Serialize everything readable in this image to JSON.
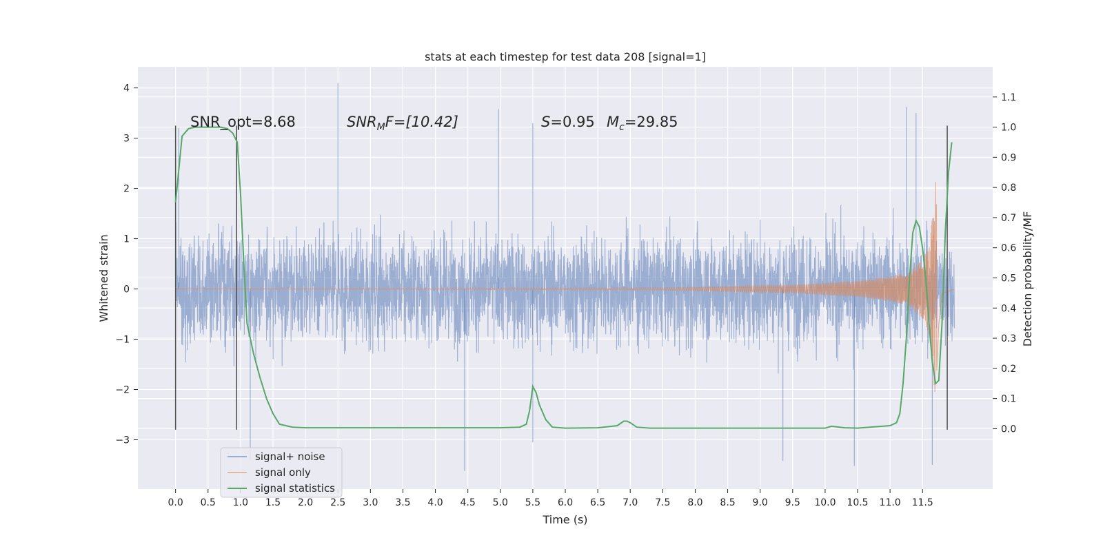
{
  "chart_data": {
    "type": "line",
    "title": "stats at each timestep for test data 208 [signal=1]",
    "xlabel": "Time (s)",
    "ylabel": "Whitened strain",
    "y2label": "Detection probability/MF",
    "xlim": [
      -0.58,
      12.58
    ],
    "ylim": [
      -3.98,
      4.42
    ],
    "y2lim": [
      -0.2,
      1.2
    ],
    "x_ticks": [
      0.0,
      0.5,
      1.0,
      1.5,
      2.0,
      2.5,
      3.0,
      3.5,
      4.0,
      4.5,
      5.0,
      5.5,
      6.0,
      6.5,
      7.0,
      7.5,
      8.0,
      8.5,
      9.0,
      9.5,
      10.0,
      10.5,
      11.0,
      11.5
    ],
    "x_tick_labels": [
      "0.0",
      "0.5",
      "1.0",
      "1.5",
      "2.0",
      "2.5",
      "3.0",
      "3.5",
      "4.0",
      "4.5",
      "5.0",
      "5.5",
      "6.0",
      "6.5",
      "7.0",
      "7.5",
      "8.0",
      "8.5",
      "9.0",
      "9.5",
      "10.0",
      "10.5",
      "11.0",
      "11.5"
    ],
    "y_ticks": [
      -3,
      -2,
      -1,
      0,
      1,
      2,
      3,
      4
    ],
    "y_tick_labels": [
      "−3",
      "−2",
      "−1",
      "0",
      "1",
      "2",
      "3",
      "4"
    ],
    "y2_ticks": [
      0.0,
      0.1,
      0.2,
      0.3,
      0.4,
      0.5,
      0.6,
      0.7,
      0.8,
      0.9,
      1.0,
      1.1
    ],
    "y2_tick_labels": [
      "0.0",
      "0.1",
      "0.2",
      "0.3",
      "0.4",
      "0.5",
      "0.6",
      "0.7",
      "0.8",
      "0.9",
      "1.0",
      "1.1"
    ],
    "grid": true,
    "legend_position": "lower-left",
    "annotations": {
      "snr_opt": "SNR_opt=8.68",
      "snr_mf_italic": "SNR",
      "snr_mf_sub": "M",
      "snr_mf_rest": "F=[10.42]",
      "s_italic": "S",
      "s_rest": "=0.95",
      "mc_italic": "M",
      "mc_sub": "c",
      "mc_rest": "=29.85"
    },
    "series": [
      {
        "name": "signal+ noise",
        "axis": "left",
        "color": "#4c72b0",
        "x_range": [
          0.0,
          11.99
        ],
        "typical_range": [
          -1.6,
          1.7
        ],
        "extremes": [
          -3.62,
          4.1
        ],
        "peaks": [
          {
            "x": 0.05,
            "y": 3.2
          },
          {
            "x": 2.5,
            "y": 4.1
          },
          {
            "x": 4.97,
            "y": 3.58
          },
          {
            "x": 5.5,
            "y": 3.3
          },
          {
            "x": 11.25,
            "y": 3.62
          },
          {
            "x": 11.4,
            "y": 3.5
          },
          {
            "x": 1.15,
            "y": -3.4
          },
          {
            "x": 4.45,
            "y": -3.62
          },
          {
            "x": 10.45,
            "y": -3.52
          },
          {
            "x": 11.65,
            "y": -3.5
          },
          {
            "x": 9.35,
            "y": -3.42
          },
          {
            "x": 5.5,
            "y": -3.05
          }
        ]
      },
      {
        "name": "signal only",
        "axis": "left",
        "color": "#dd8452",
        "description_free": true,
        "x": [
          0.0,
          7.5,
          8.5,
          9.5,
          10.0,
          10.5,
          11.0,
          11.3,
          11.5,
          11.6,
          11.65,
          11.68,
          11.7,
          11.72,
          11.75,
          11.8,
          12.0
        ],
        "y_envelope": [
          0.0,
          0.02,
          0.05,
          0.08,
          0.12,
          0.16,
          0.25,
          0.35,
          0.6,
          0.9,
          1.4,
          1.95,
          2.15,
          1.8,
          0.8,
          0.1,
          0.0
        ]
      },
      {
        "name": "signal statistics",
        "axis": "right",
        "color": "#55a868",
        "x": [
          0.0,
          0.1,
          0.2,
          0.3,
          0.5,
          0.7,
          0.8,
          0.88,
          0.95,
          1.0,
          1.05,
          1.1,
          1.2,
          1.3,
          1.4,
          1.5,
          1.6,
          1.8,
          2.0,
          3.0,
          4.0,
          5.0,
          5.3,
          5.4,
          5.45,
          5.5,
          5.55,
          5.6,
          5.7,
          5.8,
          6.0,
          6.5,
          6.8,
          6.9,
          6.95,
          7.0,
          7.1,
          7.3,
          8.0,
          9.0,
          10.0,
          10.1,
          10.3,
          10.5,
          11.0,
          11.1,
          11.15,
          11.2,
          11.25,
          11.3,
          11.35,
          11.4,
          11.45,
          11.5,
          11.55,
          11.6,
          11.65,
          11.7,
          11.75,
          11.8,
          11.85,
          11.9,
          11.95
        ],
        "y": [
          0.75,
          0.97,
          0.995,
          1.0,
          1.0,
          1.0,
          0.995,
          0.98,
          0.95,
          0.78,
          0.55,
          0.35,
          0.25,
          0.17,
          0.1,
          0.05,
          0.015,
          0.005,
          0.003,
          0.003,
          0.003,
          0.003,
          0.005,
          0.015,
          0.06,
          0.14,
          0.12,
          0.08,
          0.03,
          0.005,
          0.002,
          0.003,
          0.01,
          0.025,
          0.025,
          0.02,
          0.005,
          0.002,
          0.002,
          0.002,
          0.002,
          0.008,
          0.003,
          0.002,
          0.01,
          0.02,
          0.05,
          0.15,
          0.3,
          0.5,
          0.65,
          0.69,
          0.67,
          0.6,
          0.5,
          0.35,
          0.22,
          0.15,
          0.16,
          0.35,
          0.65,
          0.85,
          0.95
        ]
      }
    ],
    "markers": {
      "color": "#4d4d4d",
      "lines": [
        {
          "x": 0.0,
          "y_from": -2.8,
          "y_to": 3.25
        },
        {
          "x": 0.94,
          "y_from": -2.8,
          "y_to": 3.25
        },
        {
          "x": 11.88,
          "y_from": -2.8,
          "y_to": 3.25
        }
      ]
    }
  }
}
